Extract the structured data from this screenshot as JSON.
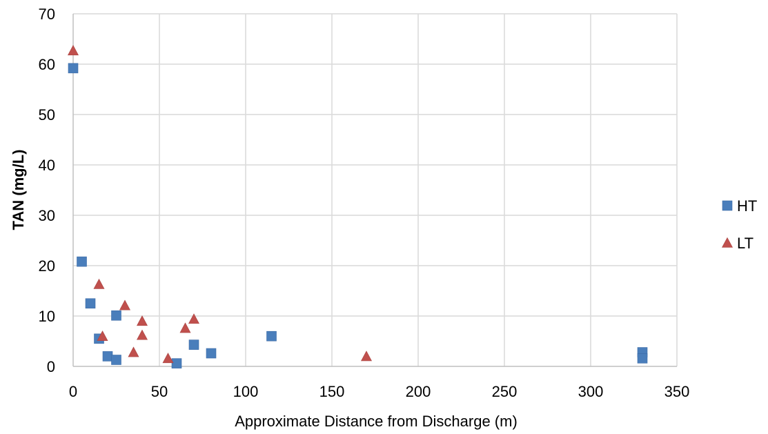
{
  "chart_data": {
    "type": "scatter",
    "xlabel": "Approximate Distance from Discharge (m)",
    "ylabel": "TAN (mg/L)",
    "xlim": [
      0,
      350
    ],
    "ylim": [
      0,
      70
    ],
    "xticks": [
      0,
      50,
      100,
      150,
      200,
      250,
      300,
      350
    ],
    "yticks": [
      0,
      10,
      20,
      30,
      40,
      50,
      60,
      70
    ],
    "grid": true,
    "legend": "right",
    "series": [
      {
        "name": "HT",
        "marker": "square",
        "color": "#4a7ebb",
        "points": [
          [
            0,
            59.2
          ],
          [
            5,
            20.8
          ],
          [
            10,
            12.5
          ],
          [
            15,
            5.5
          ],
          [
            20,
            2.0
          ],
          [
            25,
            10.1
          ],
          [
            25,
            1.3
          ],
          [
            60,
            0.6
          ],
          [
            70,
            4.3
          ],
          [
            80,
            2.6
          ],
          [
            115,
            6.0
          ],
          [
            330,
            2.8
          ],
          [
            330,
            1.6
          ]
        ]
      },
      {
        "name": "LT",
        "marker": "triangle",
        "color": "#c0504d",
        "points": [
          [
            0,
            62.7
          ],
          [
            15,
            16.3
          ],
          [
            17,
            6.0
          ],
          [
            30,
            12.1
          ],
          [
            35,
            2.8
          ],
          [
            40,
            9.0
          ],
          [
            40,
            6.2
          ],
          [
            55,
            1.6
          ],
          [
            65,
            7.6
          ],
          [
            70,
            9.4
          ],
          [
            170,
            2.0
          ]
        ]
      }
    ]
  }
}
